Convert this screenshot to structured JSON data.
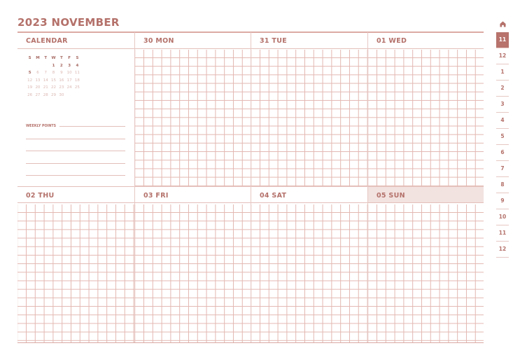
{
  "title": "2023 NOVEMBER",
  "calendar": {
    "label": "CALENDAR",
    "weekdays": [
      "S",
      "M",
      "T",
      "W",
      "T",
      "F",
      "S"
    ],
    "weeks": [
      [
        "",
        "",
        "",
        "1",
        "2",
        "3",
        "4"
      ],
      [
        "5",
        "6",
        "7",
        "8",
        "9",
        "10",
        "11"
      ],
      [
        "12",
        "13",
        "14",
        "15",
        "16",
        "17",
        "18"
      ],
      [
        "19",
        "20",
        "21",
        "22",
        "23",
        "24",
        "25"
      ],
      [
        "26",
        "27",
        "28",
        "29",
        "30",
        "",
        ""
      ]
    ],
    "weekly_points": "WEEKLY POINTS"
  },
  "days": [
    {
      "label": "30 MON"
    },
    {
      "label": "31 TUE"
    },
    {
      "label": "01 WED"
    },
    {
      "label": "02 THU"
    },
    {
      "label": "03 FRI"
    },
    {
      "label": "04 SAT"
    },
    {
      "label": "05 SUN",
      "highlight": true
    }
  ],
  "sidebar": {
    "home_icon": "home-icon",
    "tabs": [
      "11",
      "12",
      "1",
      "2",
      "3",
      "4",
      "5",
      "6",
      "7",
      "8",
      "9",
      "10",
      "11",
      "12"
    ],
    "active": 0
  },
  "colors": {
    "accent": "#b4716a",
    "grid": "#e3b7b1",
    "sunday_bg": "#f2e2e0"
  }
}
